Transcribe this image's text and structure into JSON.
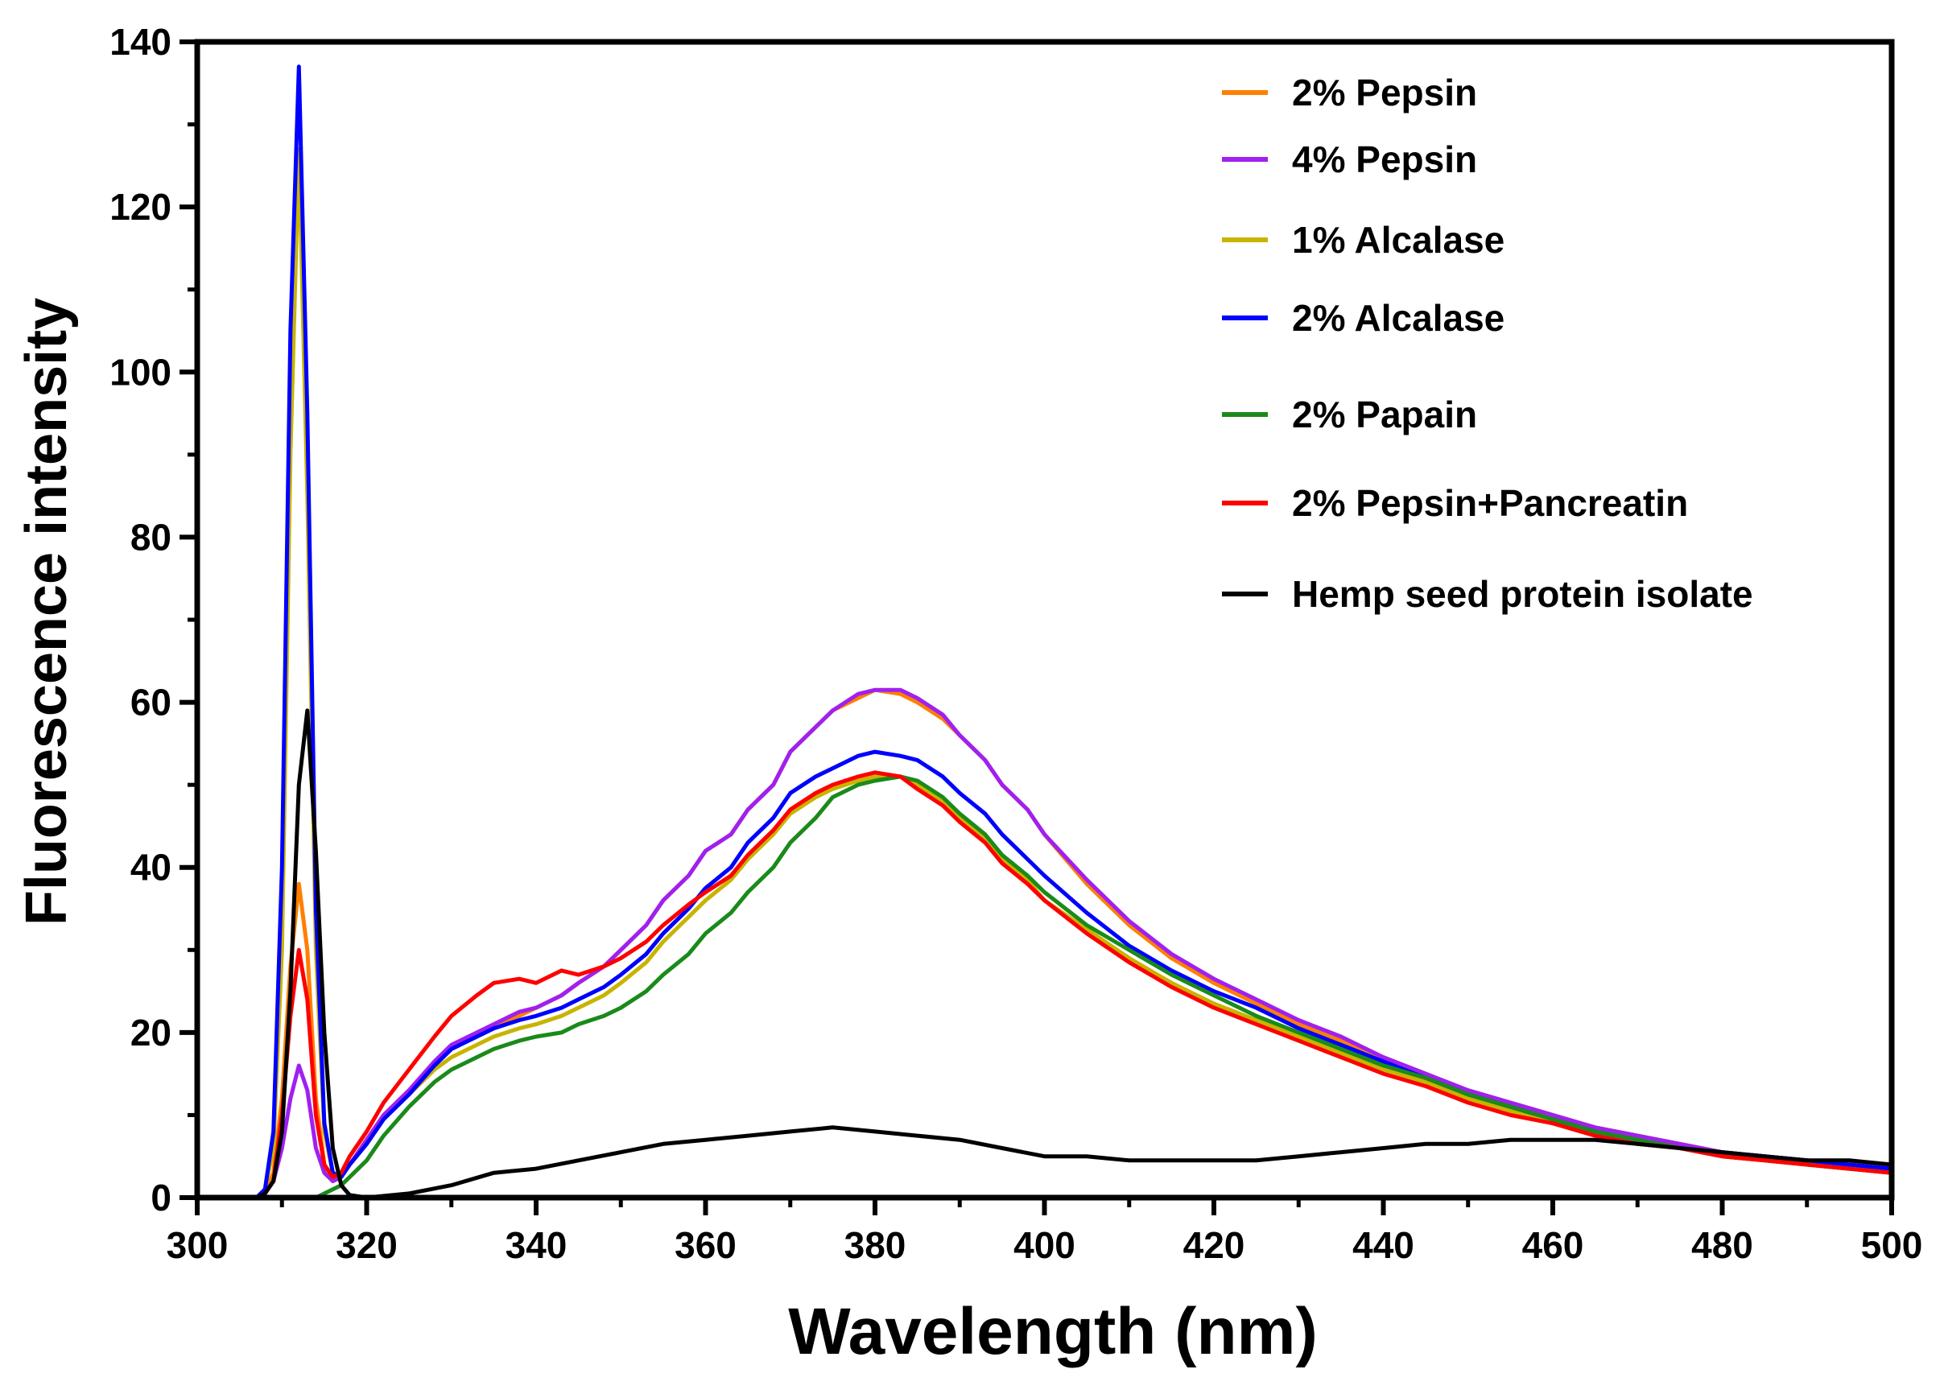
{
  "chart_data": {
    "type": "line",
    "title": "",
    "xlabel": "Wavelength (nm)",
    "ylabel": "Fluorescence intensity",
    "xlim": [
      300,
      500
    ],
    "ylim": [
      0,
      140
    ],
    "xticks": [
      300,
      320,
      340,
      360,
      380,
      400,
      420,
      440,
      460,
      480,
      500
    ],
    "yticks": [
      0,
      20,
      40,
      60,
      80,
      100,
      120,
      140
    ],
    "grid": false,
    "legend_position": "top-right",
    "series": [
      {
        "name": "2% Pepsin",
        "color": "#FF7F00",
        "x": [
          300,
          305,
          307,
          308,
          309,
          310,
          311,
          312,
          313,
          314,
          315,
          316,
          317,
          318,
          320,
          322,
          325,
          328,
          330,
          333,
          335,
          338,
          340,
          343,
          345,
          348,
          350,
          353,
          355,
          358,
          360,
          363,
          365,
          368,
          370,
          373,
          375,
          378,
          380,
          383,
          385,
          388,
          390,
          393,
          395,
          398,
          400,
          405,
          410,
          415,
          420,
          425,
          430,
          435,
          440,
          445,
          450,
          455,
          460,
          465,
          470,
          475,
          480,
          485,
          490,
          495,
          500
        ],
        "y": [
          0,
          0,
          0,
          0.5,
          3,
          12,
          28,
          38,
          30,
          12,
          4,
          2,
          2.5,
          4,
          7,
          10,
          13,
          16,
          18,
          19.5,
          20.5,
          22,
          23,
          24.5,
          26,
          28,
          30,
          33,
          36,
          39,
          42,
          44,
          47,
          50,
          54,
          57,
          59,
          60.5,
          61.5,
          61,
          60,
          58,
          56,
          53,
          50,
          47,
          44,
          38,
          33,
          29,
          26,
          23.5,
          21,
          19,
          17,
          15,
          13,
          11.5,
          10,
          8.5,
          7.5,
          6.5,
          5.5,
          5,
          4.5,
          4,
          3.5
        ]
      },
      {
        "name": "4% Pepsin",
        "color": "#A020F0",
        "x": [
          300,
          305,
          307,
          308,
          309,
          310,
          311,
          312,
          313,
          314,
          315,
          316,
          317,
          318,
          320,
          322,
          325,
          328,
          330,
          333,
          335,
          338,
          340,
          343,
          345,
          348,
          350,
          353,
          355,
          358,
          360,
          363,
          365,
          368,
          370,
          373,
          375,
          378,
          380,
          383,
          385,
          388,
          390,
          393,
          395,
          398,
          400,
          405,
          410,
          415,
          420,
          425,
          430,
          435,
          440,
          445,
          450,
          455,
          460,
          465,
          470,
          475,
          480,
          485,
          490,
          495,
          500
        ],
        "y": [
          0,
          0,
          0,
          0.5,
          2,
          6,
          12,
          16,
          13,
          6,
          3,
          2,
          2.5,
          4,
          7,
          10,
          13,
          16.5,
          18.5,
          20,
          21,
          22.5,
          23,
          24.5,
          26,
          28,
          30,
          33,
          36,
          39,
          42,
          44,
          47,
          50,
          54,
          57,
          59,
          61,
          61.5,
          61.5,
          60.5,
          58.5,
          56,
          53,
          50,
          47,
          44,
          38.5,
          33.5,
          29.5,
          26.5,
          24,
          21.5,
          19.5,
          17,
          15,
          13,
          11.5,
          10,
          8.5,
          7.5,
          6.5,
          5.5,
          5,
          4.5,
          4,
          3.5
        ]
      },
      {
        "name": "1% Alcalase",
        "color": "#C8B400",
        "x": [
          300,
          305,
          307,
          308,
          309,
          310,
          311,
          312,
          313,
          314,
          315,
          316,
          317,
          318,
          320,
          322,
          325,
          328,
          330,
          333,
          335,
          338,
          340,
          343,
          345,
          348,
          350,
          353,
          355,
          358,
          360,
          363,
          365,
          368,
          370,
          373,
          375,
          378,
          380,
          383,
          385,
          388,
          390,
          393,
          395,
          398,
          400,
          405,
          410,
          415,
          420,
          425,
          430,
          435,
          440,
          445,
          450,
          455,
          460,
          465,
          470,
          475,
          480,
          485,
          490,
          495,
          500
        ],
        "y": [
          0,
          0,
          0,
          1,
          6,
          30,
          90,
          127,
          85,
          30,
          8,
          3,
          2.5,
          4,
          6.5,
          9.5,
          12.5,
          15.5,
          17,
          18.5,
          19.5,
          20.5,
          21,
          22,
          23,
          24.5,
          26,
          28.5,
          31,
          34,
          36,
          38.5,
          41,
          44,
          46.5,
          48.5,
          49.5,
          50.5,
          51,
          51,
          50,
          48,
          46,
          43.5,
          41,
          38.5,
          36,
          32.5,
          29,
          26,
          23.5,
          21.5,
          19.5,
          17.5,
          15.5,
          14,
          12,
          10.5,
          9,
          8,
          7,
          6,
          5.5,
          5,
          4,
          3.5,
          3.5
        ]
      },
      {
        "name": "2% Alcalase",
        "color": "#0000FF",
        "x": [
          300,
          305,
          307,
          308,
          309,
          310,
          311,
          312,
          313,
          314,
          315,
          316,
          317,
          318,
          320,
          322,
          325,
          328,
          330,
          333,
          335,
          338,
          340,
          343,
          345,
          348,
          350,
          353,
          355,
          358,
          360,
          363,
          365,
          368,
          370,
          373,
          375,
          378,
          380,
          383,
          385,
          388,
          390,
          393,
          395,
          398,
          400,
          405,
          410,
          415,
          420,
          425,
          430,
          435,
          440,
          445,
          450,
          455,
          460,
          465,
          470,
          475,
          480,
          485,
          490,
          495,
          500
        ],
        "y": [
          0,
          0,
          0,
          1,
          8,
          40,
          105,
          137,
          95,
          35,
          9,
          3,
          2.5,
          4,
          6.5,
          9.5,
          12.5,
          16,
          18,
          19.5,
          20.5,
          21.5,
          22,
          23,
          24,
          25.5,
          27,
          29.5,
          32,
          35,
          37.5,
          40,
          43,
          46,
          49,
          51,
          52,
          53.5,
          54,
          53.5,
          53,
          51,
          49,
          46.5,
          44,
          41,
          39,
          34.5,
          30.5,
          27.5,
          25,
          23,
          20.5,
          18.5,
          16.5,
          14.5,
          12.5,
          11,
          9.5,
          8,
          7,
          6,
          5.5,
          5,
          4.5,
          4,
          3.5
        ]
      },
      {
        "name": "2% Papain",
        "color": "#1A8A1A",
        "x": [
          300,
          305,
          310,
          313,
          314,
          315,
          316,
          317,
          318,
          320,
          322,
          325,
          328,
          330,
          333,
          335,
          338,
          340,
          343,
          345,
          348,
          350,
          353,
          355,
          358,
          360,
          363,
          365,
          368,
          370,
          373,
          375,
          378,
          380,
          383,
          385,
          388,
          390,
          393,
          395,
          398,
          400,
          405,
          410,
          415,
          420,
          425,
          430,
          435,
          440,
          445,
          450,
          455,
          460,
          465,
          470,
          475,
          480,
          485,
          490,
          495,
          500
        ],
        "y": [
          0,
          0,
          0,
          0,
          0,
          0.5,
          1,
          1.5,
          2.5,
          4.5,
          7.5,
          11,
          14,
          15.5,
          17,
          18,
          19,
          19.5,
          20,
          21,
          22,
          23,
          25,
          27,
          29.5,
          32,
          34.5,
          37,
          40,
          43,
          46,
          48.5,
          50,
          50.5,
          51,
          50.5,
          48.5,
          46.5,
          44,
          41.5,
          39,
          37,
          33,
          30,
          27,
          24.5,
          22,
          20,
          18,
          16,
          14.5,
          12.5,
          11,
          9.5,
          8,
          7,
          6,
          5,
          4.5,
          4,
          3.5,
          3
        ]
      },
      {
        "name": "2% Pepsin+Pancreatin",
        "color": "#FF0000",
        "x": [
          300,
          305,
          307,
          308,
          309,
          310,
          311,
          312,
          313,
          314,
          315,
          316,
          317,
          318,
          320,
          322,
          325,
          328,
          330,
          333,
          335,
          338,
          340,
          343,
          345,
          348,
          350,
          353,
          355,
          358,
          360,
          363,
          365,
          368,
          370,
          373,
          375,
          378,
          380,
          383,
          385,
          388,
          390,
          393,
          395,
          398,
          400,
          405,
          410,
          415,
          420,
          425,
          430,
          435,
          440,
          445,
          450,
          455,
          460,
          465,
          470,
          475,
          480,
          485,
          490,
          495,
          500
        ],
        "y": [
          0,
          0,
          0,
          0.5,
          2,
          10,
          22,
          30,
          24,
          10,
          4,
          2.5,
          3,
          5,
          8,
          11.5,
          15.5,
          19.5,
          22,
          24.5,
          26,
          26.5,
          26,
          27.5,
          27,
          28,
          29,
          31,
          33,
          35.5,
          37,
          39,
          41.5,
          44.5,
          47,
          49,
          50,
          51,
          51.5,
          51,
          49.5,
          47.5,
          45.5,
          43,
          40.5,
          38,
          36,
          32,
          28.5,
          25.5,
          23,
          21,
          19,
          17,
          15,
          13.5,
          11.5,
          10,
          9,
          7.5,
          6.5,
          6,
          5,
          4.5,
          4,
          3.5,
          3
        ]
      },
      {
        "name": "Hemp seed protein isolate",
        "color": "#000000",
        "x": [
          300,
          305,
          307,
          308,
          309,
          310,
          311,
          312,
          313,
          314,
          315,
          316,
          317,
          318,
          320,
          325,
          330,
          335,
          340,
          345,
          350,
          355,
          360,
          365,
          370,
          375,
          380,
          385,
          390,
          395,
          400,
          405,
          410,
          415,
          420,
          425,
          430,
          435,
          440,
          445,
          450,
          455,
          460,
          465,
          470,
          475,
          480,
          485,
          490,
          495,
          500
        ],
        "y": [
          0,
          0,
          0,
          0.5,
          2,
          8,
          25,
          50,
          59,
          42,
          20,
          6,
          1.5,
          0.3,
          0,
          0.5,
          1.5,
          3,
          3.5,
          4.5,
          5.5,
          6.5,
          7,
          7.5,
          8,
          8.5,
          8,
          7.5,
          7,
          6,
          5,
          5,
          4.5,
          4.5,
          4.5,
          4.5,
          5,
          5.5,
          6,
          6.5,
          6.5,
          7,
          7,
          7,
          6.5,
          6,
          5.5,
          5,
          4.5,
          4.5,
          4
        ]
      }
    ]
  }
}
